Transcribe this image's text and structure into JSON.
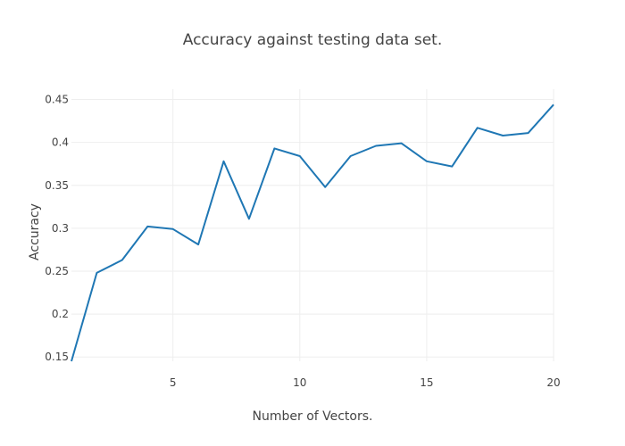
{
  "chart_data": {
    "type": "line",
    "title": "Accuracy against testing data set.",
    "xlabel": "Number of Vectors.",
    "ylabel": "Accuracy",
    "xlim": [
      1,
      20
    ],
    "ylim": [
      0.145,
      0.462
    ],
    "grid": true,
    "xticks": [
      5,
      10,
      15,
      20
    ],
    "xtick_labels": [
      "5",
      "10",
      "15",
      "20"
    ],
    "yticks": [
      0.15,
      0.2,
      0.25,
      0.3,
      0.35,
      0.4,
      0.45
    ],
    "ytick_labels": [
      "0.15",
      "0.2",
      "0.25",
      "0.3",
      "0.35",
      "0.4",
      "0.45"
    ],
    "line_color": "#1f77b4",
    "series": [
      {
        "x": [
          1,
          2,
          3,
          4,
          5,
          6,
          7,
          8,
          9,
          10,
          11,
          12,
          13,
          14,
          15,
          16,
          17,
          18,
          19,
          20
        ],
        "values": [
          0.145,
          0.248,
          0.263,
          0.302,
          0.299,
          0.281,
          0.378,
          0.311,
          0.393,
          0.384,
          0.348,
          0.384,
          0.396,
          0.399,
          0.378,
          0.372,
          0.417,
          0.408,
          0.411,
          0.444
        ]
      }
    ]
  }
}
